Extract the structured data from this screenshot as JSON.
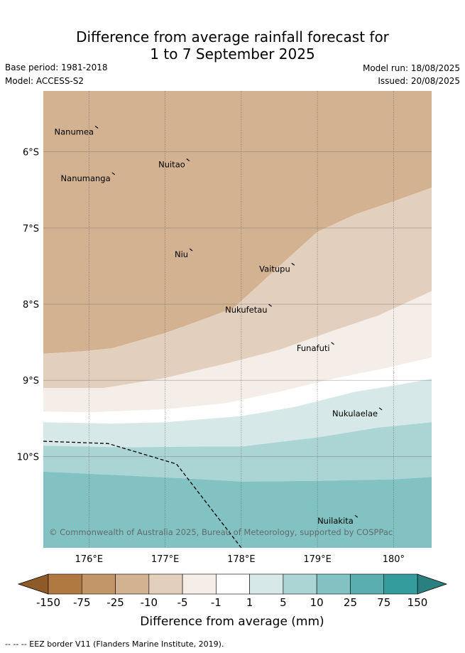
{
  "header": {
    "title_line1": "Difference from average rainfall forecast for",
    "title_line2": "1 to 7 September 2025",
    "base_period": "Base period: 1981-2018",
    "model": "Model: ACCESS-S2",
    "model_run": "Model run: 18/08/2025",
    "issued": "Issued: 20/08/2025"
  },
  "map": {
    "lon_range": [
      175.4,
      180.5
    ],
    "lat_range": [
      -11.2,
      -5.2
    ],
    "lon_ticks": [
      {
        "value": 176,
        "label": "176°E"
      },
      {
        "value": 177,
        "label": "177°E"
      },
      {
        "value": 178,
        "label": "178°E"
      },
      {
        "value": 179,
        "label": "179°E"
      },
      {
        "value": 180,
        "label": "180°"
      }
    ],
    "lat_ticks": [
      {
        "value": -6,
        "label": "6°S"
      },
      {
        "value": -7,
        "label": "7°S"
      },
      {
        "value": -8,
        "label": "8°S"
      },
      {
        "value": -9,
        "label": "9°S"
      },
      {
        "value": -10,
        "label": "10°S"
      }
    ],
    "grid": true,
    "islands": [
      {
        "name": "Nanumea",
        "lon": 176.1,
        "lat": -5.68
      },
      {
        "name": "Nuitao",
        "lon": 177.3,
        "lat": -6.11
      },
      {
        "name": "Nanumanga",
        "lon": 176.32,
        "lat": -6.29
      },
      {
        "name": "Niu",
        "lon": 177.34,
        "lat": -7.29
      },
      {
        "name": "Vaitupu",
        "lon": 178.68,
        "lat": -7.48
      },
      {
        "name": "Nukufetau",
        "lon": 178.38,
        "lat": -8.02
      },
      {
        "name": "Funafuti",
        "lon": 179.2,
        "lat": -8.52
      },
      {
        "name": "Nukulaelae",
        "lon": 179.83,
        "lat": -9.38
      },
      {
        "name": "Nuilakita",
        "lon": 179.51,
        "lat": -10.79
      }
    ],
    "eez_border": [
      [
        175.4,
        -9.8
      ],
      [
        176.25,
        -9.83
      ],
      [
        177.15,
        -10.1
      ],
      [
        178.0,
        -11.2
      ]
    ],
    "copyright": "© Commonwealth of Australia 2025, Bureau of Meteorology, supported by COSPPac",
    "bands": [
      {
        "from": -10,
        "color": "#d2b291",
        "boundary": [
          [
            175.4,
            -8.65
          ],
          [
            175.9,
            -8.62
          ],
          [
            176.3,
            -8.58
          ],
          [
            177.0,
            -8.38
          ],
          [
            177.5,
            -8.2
          ],
          [
            177.9,
            -8.05
          ],
          [
            178.5,
            -7.5
          ],
          [
            179.0,
            -7.05
          ],
          [
            179.5,
            -6.82
          ],
          [
            180.0,
            -6.65
          ],
          [
            180.5,
            -6.47
          ]
        ]
      },
      {
        "from": -5,
        "color": "#e3cfbd",
        "boundary": [
          [
            175.4,
            -9.1
          ],
          [
            176.2,
            -9.1
          ],
          [
            177.0,
            -8.97
          ],
          [
            177.8,
            -8.78
          ],
          [
            178.5,
            -8.6
          ],
          [
            179.2,
            -8.35
          ],
          [
            179.8,
            -8.15
          ],
          [
            180.5,
            -7.83
          ]
        ]
      },
      {
        "from": -1,
        "color": "#f4ede8",
        "boundary": [
          [
            175.4,
            -9.41
          ],
          [
            176.0,
            -9.42
          ],
          [
            177.0,
            -9.38
          ],
          [
            177.8,
            -9.3
          ],
          [
            178.5,
            -9.15
          ],
          [
            179.2,
            -8.98
          ],
          [
            179.8,
            -8.86
          ],
          [
            180.5,
            -8.7
          ]
        ]
      },
      {
        "from": 1,
        "color": "#ffffff",
        "boundary": [
          [
            175.4,
            -9.55
          ],
          [
            176.3,
            -9.57
          ],
          [
            177.0,
            -9.55
          ],
          [
            178.0,
            -9.47
          ],
          [
            178.7,
            -9.35
          ],
          [
            179.5,
            -9.15
          ],
          [
            180.0,
            -9.07
          ],
          [
            180.5,
            -8.98
          ]
        ]
      },
      {
        "from": 5,
        "color": "#d6e9e8",
        "boundary": [
          [
            175.4,
            -9.86
          ],
          [
            176.5,
            -9.88
          ],
          [
            177.5,
            -9.87
          ],
          [
            178.0,
            -9.87
          ],
          [
            179.0,
            -9.75
          ],
          [
            179.8,
            -9.62
          ],
          [
            180.5,
            -9.55
          ]
        ]
      },
      {
        "from": 10,
        "color": "#abd5d5",
        "boundary": [
          [
            175.4,
            -10.2
          ],
          [
            176.5,
            -10.25
          ],
          [
            177.5,
            -10.3
          ],
          [
            178.0,
            -10.33
          ],
          [
            179.0,
            -10.32
          ],
          [
            180.0,
            -10.3
          ],
          [
            180.5,
            -10.27
          ]
        ]
      },
      {
        "from": 25,
        "color": "#82c2c2"
      }
    ]
  },
  "colorbar": {
    "title": "Difference from average (mm)",
    "tick_labels": [
      "-150",
      "-75",
      "-25",
      "-10",
      "-5",
      "-1",
      "1",
      "5",
      "10",
      "25",
      "75",
      "150"
    ],
    "colors": [
      "#b07941",
      "#c29669",
      "#d2b291",
      "#e3cfbd",
      "#f4ede8",
      "#ffffff",
      "#d6e9e8",
      "#abd5d5",
      "#82c2c2",
      "#5aaeaf",
      "#349c9c"
    ],
    "low_extend_color": "#8e5a28",
    "high_extend_color": "#2a7f80"
  },
  "footnote": "-- --  -- EEZ border V11 (Flanders Marine Institute, 2019)."
}
